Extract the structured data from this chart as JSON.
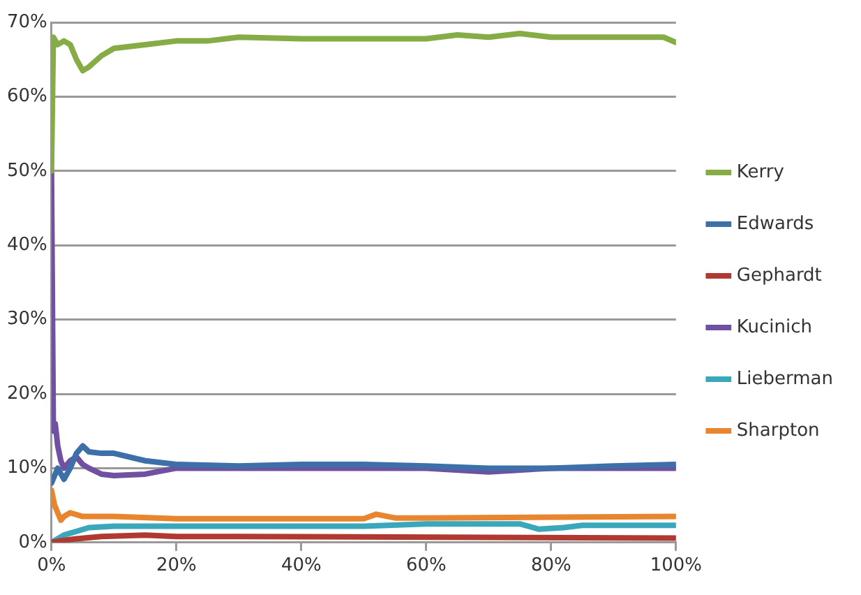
{
  "chart_data": {
    "type": "line",
    "ylim": [
      0,
      70
    ],
    "yticks": [
      {
        "value": 0,
        "label": "0%"
      },
      {
        "value": 10,
        "label": "10%"
      },
      {
        "value": 20,
        "label": "20%"
      },
      {
        "value": 30,
        "label": "30%"
      },
      {
        "value": 40,
        "label": "40%"
      },
      {
        "value": 50,
        "label": "50%"
      },
      {
        "value": 60,
        "label": "60%"
      },
      {
        "value": 70,
        "label": "70%"
      }
    ],
    "xlim": [
      0,
      100
    ],
    "xticks": [
      {
        "value": 0,
        "label": "0%"
      },
      {
        "value": 20,
        "label": "20%"
      },
      {
        "value": 40,
        "label": "40%"
      },
      {
        "value": 60,
        "label": "60%"
      },
      {
        "value": 80,
        "label": "80%"
      },
      {
        "value": 100,
        "label": "100%"
      }
    ],
    "grid": "y",
    "legend": "right",
    "marker": "none",
    "line_style": "solid",
    "series": [
      {
        "name": "Kerry",
        "color": "#86ac45",
        "x": [
          0,
          0.3,
          1,
          2,
          3,
          4,
          5,
          6,
          8,
          10,
          15,
          20,
          25,
          30,
          40,
          50,
          60,
          65,
          70,
          75,
          80,
          90,
          98,
          100
        ],
        "values": [
          50,
          68,
          67,
          67.5,
          67,
          65,
          63.5,
          64,
          65.5,
          66.5,
          67,
          67.5,
          67.5,
          68,
          67.8,
          67.8,
          67.8,
          68.3,
          68,
          68.5,
          68,
          68,
          68,
          67.3
        ]
      },
      {
        "name": "Edwards",
        "color": "#3d6fa8",
        "x": [
          0,
          0.5,
          1,
          2,
          3,
          4,
          5,
          6,
          8,
          10,
          15,
          20,
          30,
          40,
          50,
          60,
          70,
          80,
          90,
          100
        ],
        "values": [
          8,
          9,
          10,
          8.5,
          10,
          12,
          13,
          12.2,
          12,
          12,
          11,
          10.5,
          10.3,
          10.5,
          10.5,
          10.3,
          10,
          10,
          10.3,
          10.5
        ]
      },
      {
        "name": "Gephardt",
        "color": "#b03a32",
        "x": [
          0,
          2,
          4,
          8,
          15,
          20,
          30,
          100
        ],
        "values": [
          0,
          0.3,
          0.5,
          0.8,
          1,
          0.8,
          0.8,
          0.6
        ]
      },
      {
        "name": "Kucinich",
        "color": "#7050a0",
        "x": [
          0,
          0.3,
          0.6,
          1,
          1.5,
          2,
          3,
          4,
          5,
          6,
          8,
          10,
          15,
          20,
          30,
          40,
          50,
          60,
          70,
          80,
          90,
          100
        ],
        "values": [
          50,
          15,
          16,
          13,
          11,
          10,
          11,
          11.5,
          10.5,
          10,
          9.2,
          9,
          9.2,
          10,
          10,
          10,
          10,
          10,
          9.5,
          10,
          10,
          10
        ]
      },
      {
        "name": "Lieberman",
        "color": "#3ba7bb",
        "x": [
          0,
          1,
          2,
          4,
          6,
          10,
          20,
          50,
          60,
          75,
          78,
          82,
          85,
          100
        ],
        "values": [
          0,
          0.5,
          1,
          1.5,
          2,
          2.2,
          2.2,
          2.2,
          2.5,
          2.5,
          1.8,
          2,
          2.3,
          2.3
        ]
      },
      {
        "name": "Sharpton",
        "color": "#e8852f",
        "x": [
          0,
          0.5,
          1,
          1.5,
          2,
          3,
          5,
          10,
          20,
          30,
          40,
          50,
          52,
          55,
          60,
          100
        ],
        "values": [
          7,
          5,
          4,
          3,
          3.5,
          4,
          3.5,
          3.5,
          3.2,
          3.2,
          3.2,
          3.2,
          3.8,
          3.3,
          3.3,
          3.5
        ]
      }
    ]
  }
}
